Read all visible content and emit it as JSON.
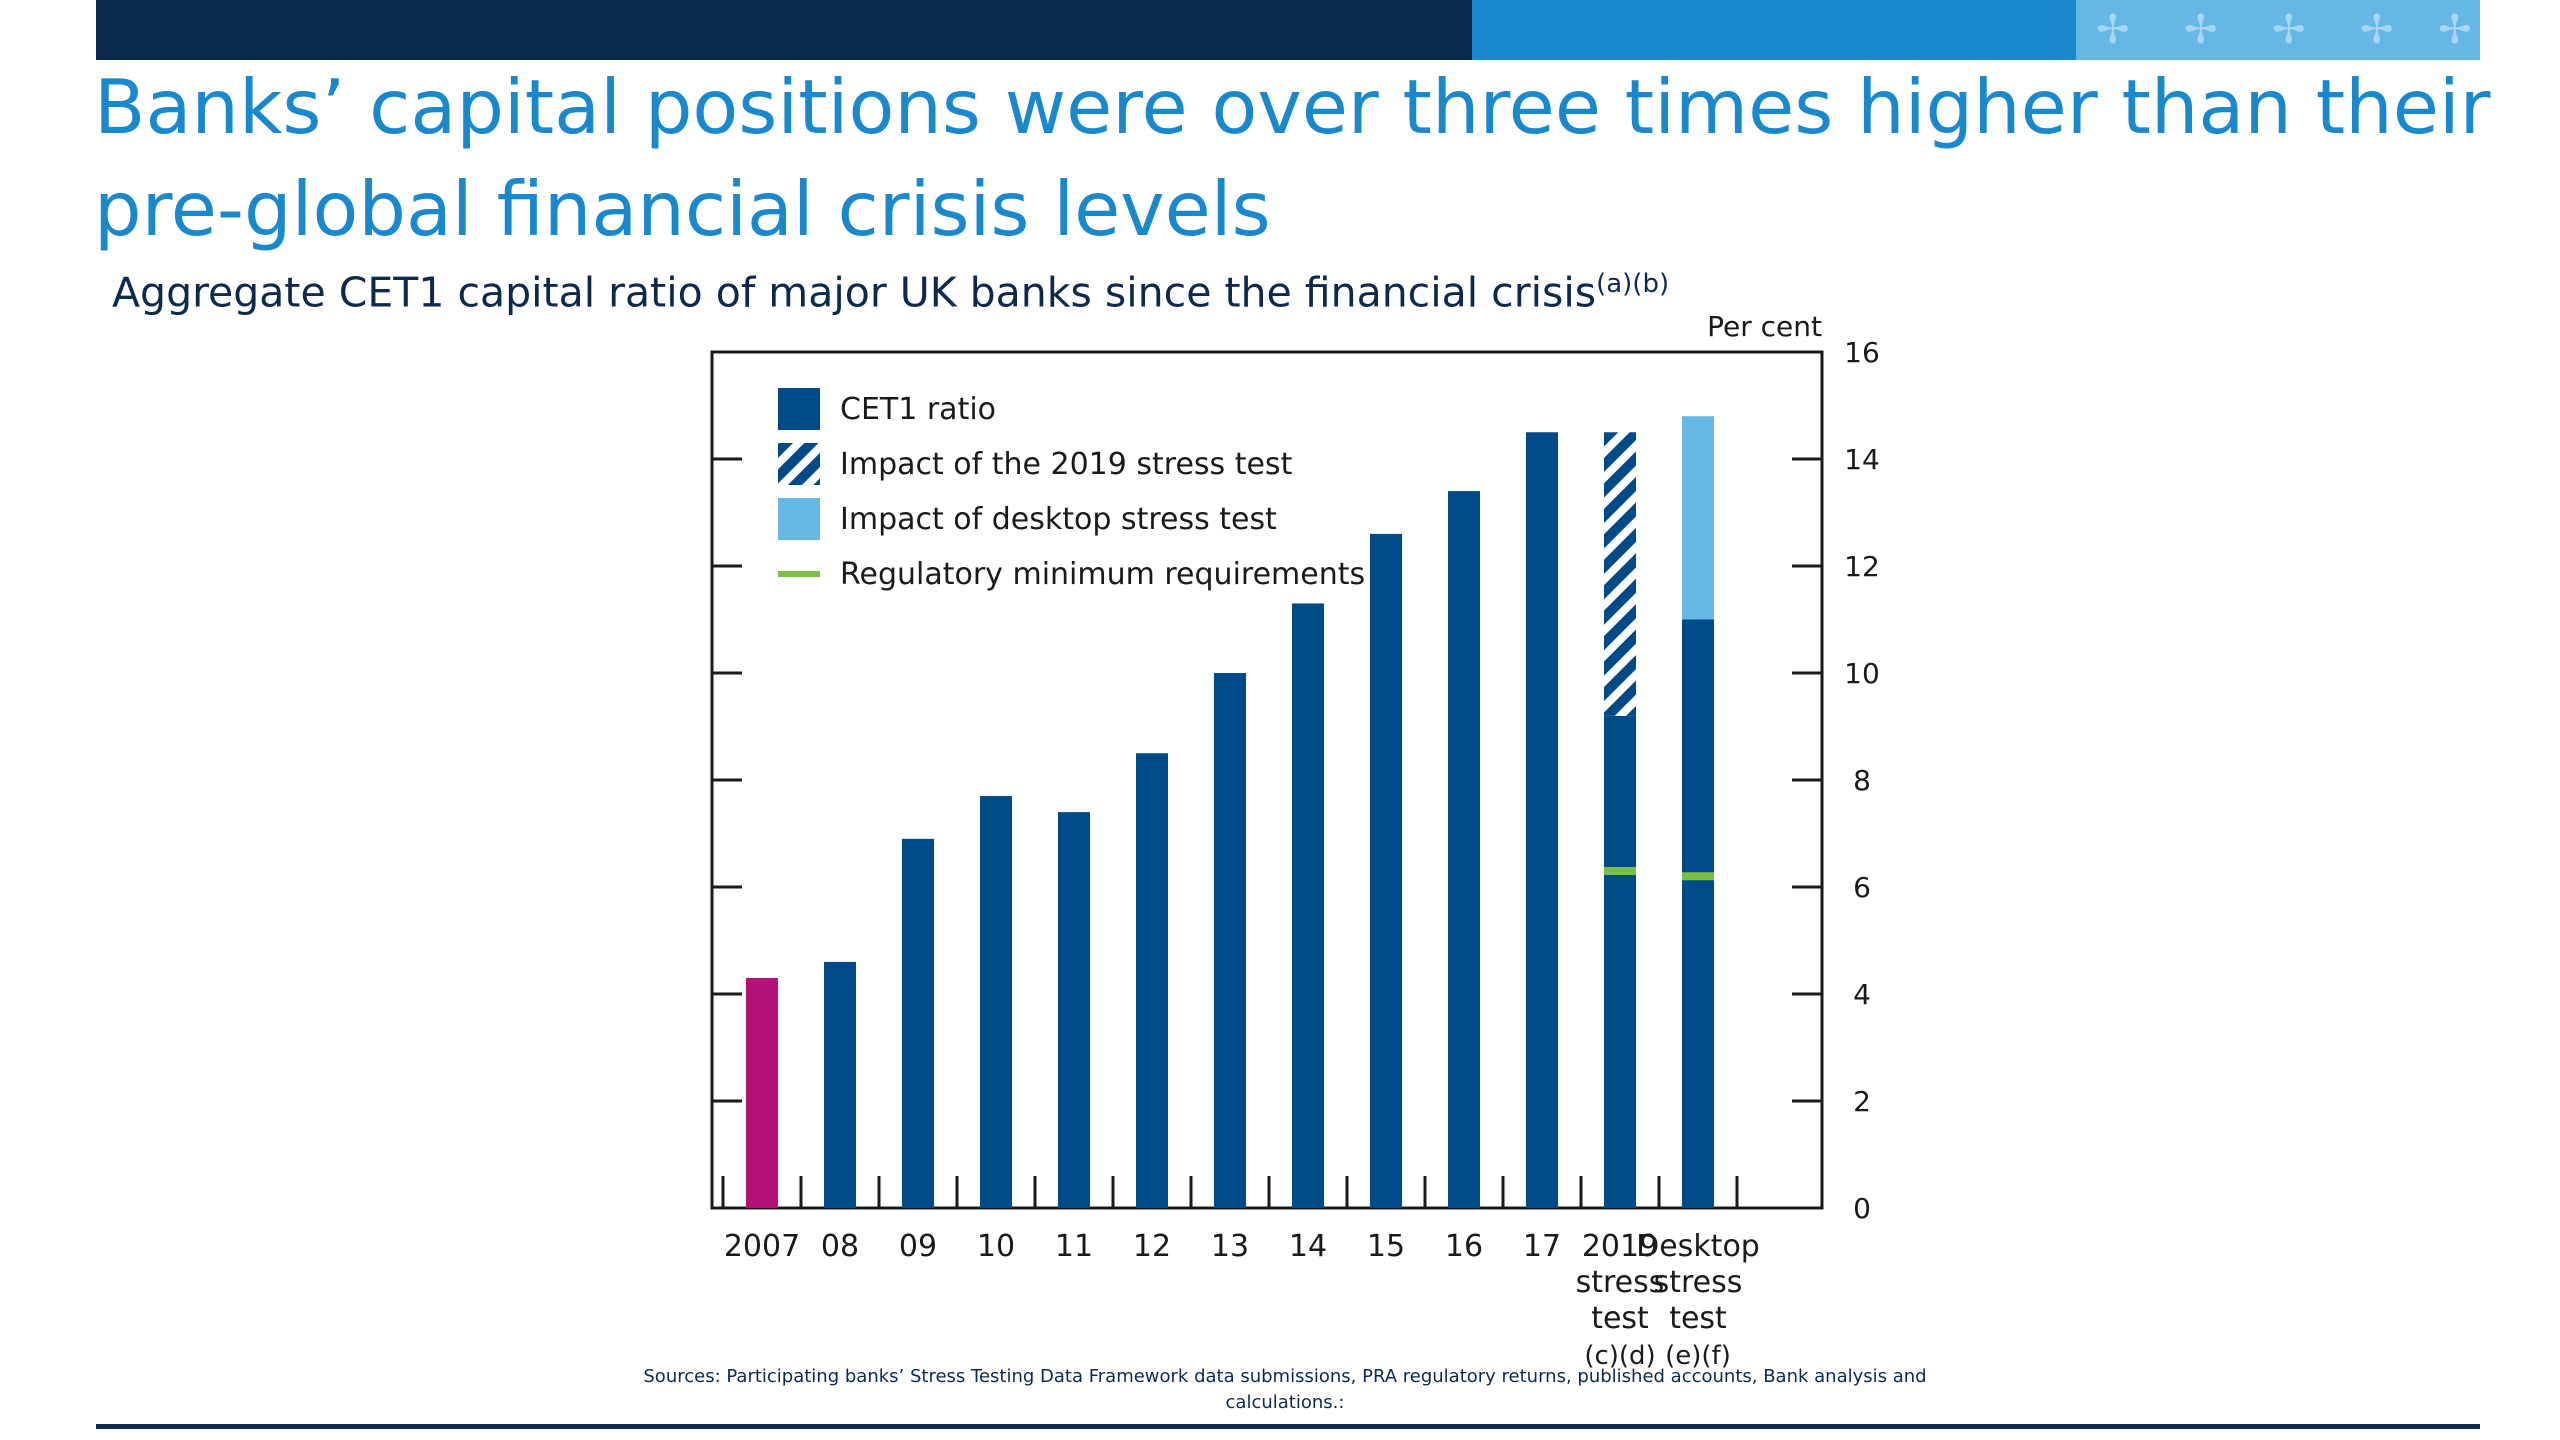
{
  "header": {
    "title": "Banks’ capital positions were over three times higher than their pre-global financial crisis levels",
    "subtitle": "Aggregate CET1 capital ratio of major UK banks since the financial crisis",
    "subtitle_notes": "(a)(b)"
  },
  "chart_data": {
    "type": "bar",
    "y_axis_label": "Per cent",
    "ylim": [
      0,
      16
    ],
    "y_ticks": [
      0,
      2,
      4,
      6,
      8,
      10,
      12,
      14,
      16
    ],
    "y_axis_position": "right",
    "legend_placement": "top-left",
    "legend": [
      {
        "name": "CET1 ratio",
        "style": "solid",
        "color": "#004a87"
      },
      {
        "name": "Impact of the 2019 stress test",
        "style": "hatched",
        "color": "#004a87"
      },
      {
        "name": "Impact of desktop stress test",
        "style": "solid",
        "color": "#66b7e6"
      },
      {
        "name": "Regulatory minimum requirements",
        "style": "line",
        "color": "#7ac143"
      }
    ],
    "categories": [
      [
        "2007"
      ],
      [
        "08"
      ],
      [
        "09"
      ],
      [
        "10"
      ],
      [
        "11"
      ],
      [
        "12"
      ],
      [
        "13"
      ],
      [
        "14"
      ],
      [
        "15"
      ],
      [
        "16"
      ],
      [
        "17"
      ],
      [
        "2019",
        "stress",
        "test",
        "(c)(d)"
      ],
      [
        "Desktop",
        "stress",
        "test",
        "(e)(f)"
      ]
    ],
    "series": [
      {
        "name": "CET1 ratio",
        "values": [
          4.3,
          4.6,
          6.9,
          7.7,
          7.4,
          8.5,
          10.0,
          11.3,
          12.6,
          13.4,
          14.5,
          9.2,
          11.0
        ]
      },
      {
        "name": "Impact of the 2019 stress test",
        "values": [
          0,
          0,
          0,
          0,
          0,
          0,
          0,
          0,
          0,
          0,
          0,
          5.3,
          0
        ]
      },
      {
        "name": "Impact of desktop stress test",
        "values": [
          0,
          0,
          0,
          0,
          0,
          0,
          0,
          0,
          0,
          0,
          0,
          0,
          3.8
        ]
      },
      {
        "name": "Regulatory minimum requirements",
        "values": [
          null,
          null,
          null,
          null,
          null,
          null,
          null,
          null,
          null,
          null,
          null,
          6.3,
          6.2
        ]
      }
    ],
    "highlight": {
      "index": 0,
      "color": "#b4127a"
    },
    "bar_color": "#004a87"
  },
  "footer": {
    "sources": "Sources: Participating banks’ Stress Testing Data Framework data submissions, PRA regulatory returns, published accounts, Bank analysis and calculations.:"
  }
}
